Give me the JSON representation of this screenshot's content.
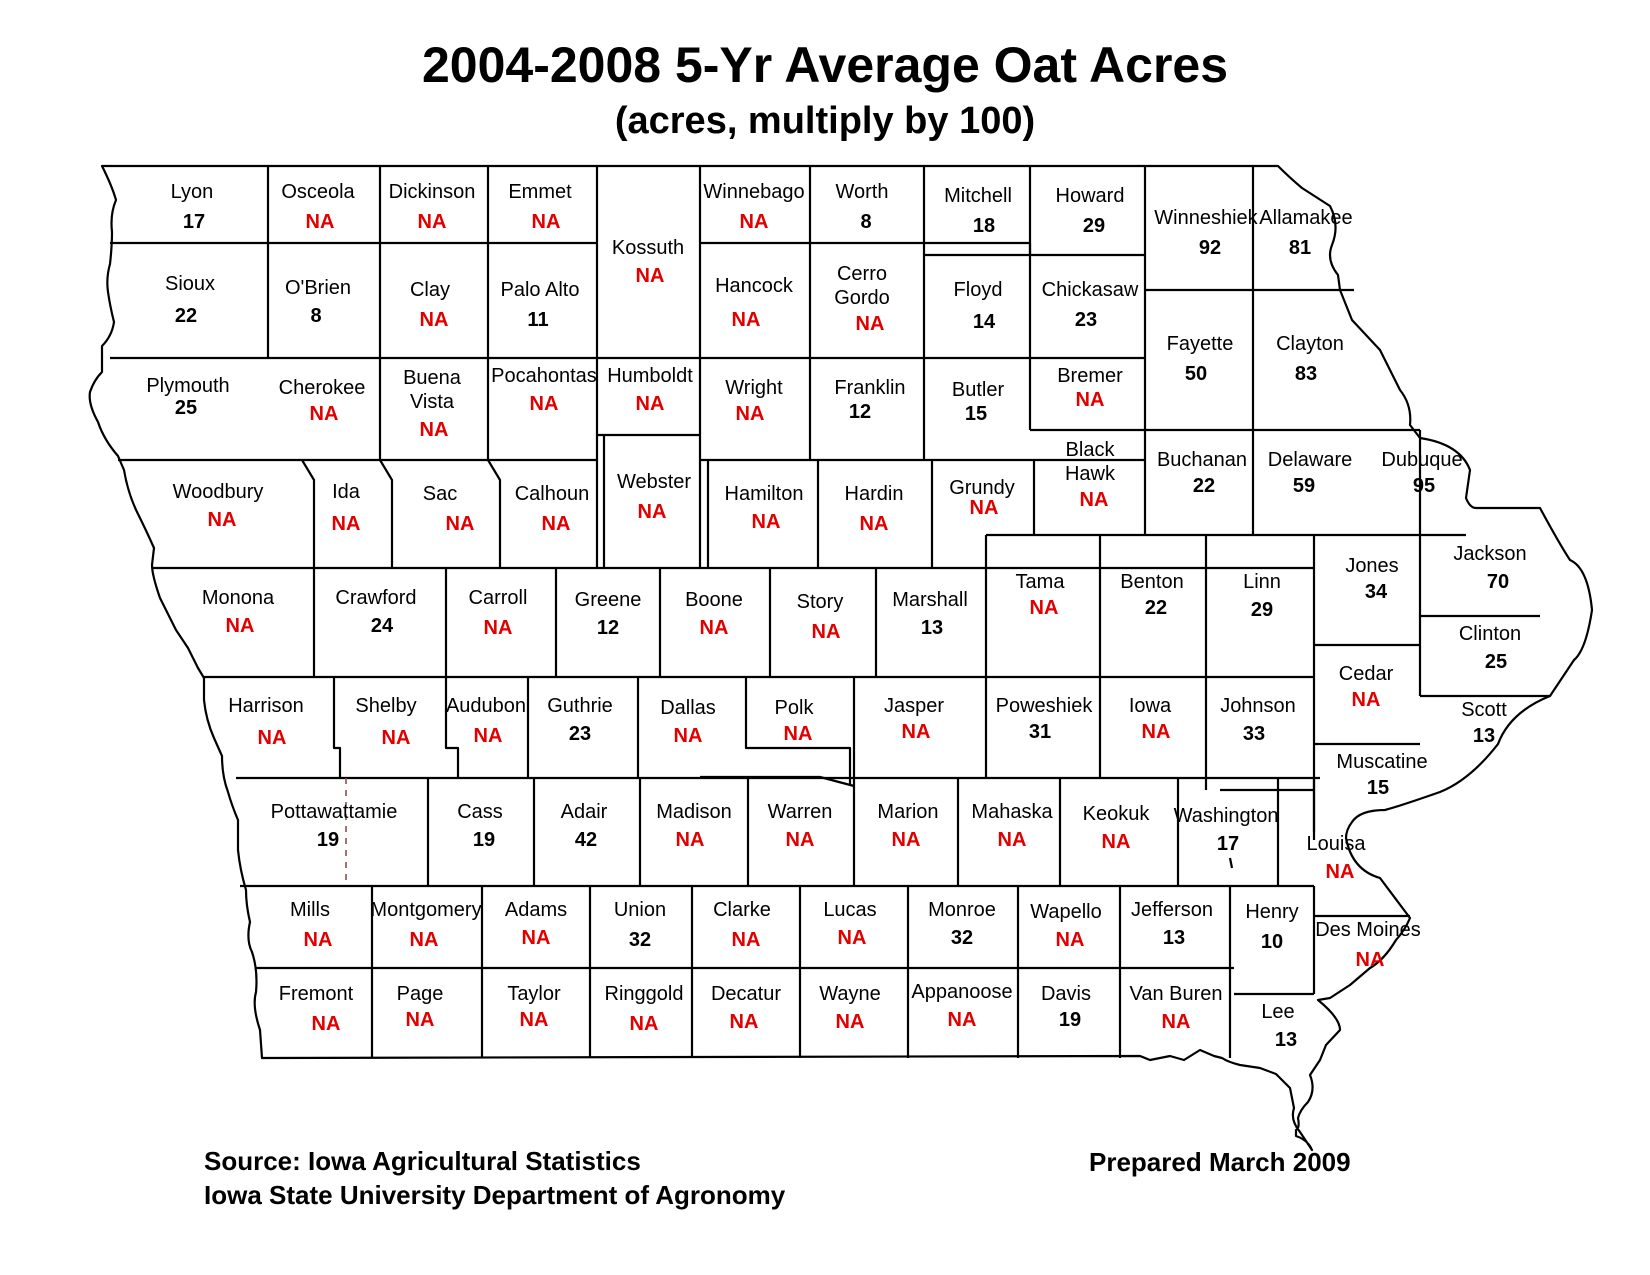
{
  "title": "2004-2008 5-Yr Average Oat Acres",
  "subtitle": "(acres, multiply by 100)",
  "source_line1": "Source:  Iowa Agricultural Statistics",
  "source_line2": "Iowa State University Department of Agronomy",
  "prepared": "Prepared March 2009",
  "colors": {
    "value": "#000000",
    "na": "#e00000",
    "border": "#000000"
  },
  "counties": [
    {
      "name": "Lyon",
      "value": "17"
    },
    {
      "name": "Osceola",
      "value": "NA"
    },
    {
      "name": "Dickinson",
      "value": "NA"
    },
    {
      "name": "Emmet",
      "value": "NA"
    },
    {
      "name": "Kossuth",
      "value": "NA"
    },
    {
      "name": "Winnebago",
      "value": "NA"
    },
    {
      "name": "Worth",
      "value": "8"
    },
    {
      "name": "Mitchell",
      "value": "18"
    },
    {
      "name": "Howard",
      "value": "29"
    },
    {
      "name": "Winneshiek",
      "value": "92"
    },
    {
      "name": "Allamakee",
      "value": "81"
    },
    {
      "name": "Sioux",
      "value": "22"
    },
    {
      "name": "O'Brien",
      "value": "8"
    },
    {
      "name": "Clay",
      "value": "NA"
    },
    {
      "name": "Palo Alto",
      "value": "11"
    },
    {
      "name": "Hancock",
      "value": "NA"
    },
    {
      "name": "Cerro Gordo",
      "value": "NA"
    },
    {
      "name": "Floyd",
      "value": "14"
    },
    {
      "name": "Chickasaw",
      "value": "23"
    },
    {
      "name": "Fayette",
      "value": "50"
    },
    {
      "name": "Clayton",
      "value": "83"
    },
    {
      "name": "Plymouth",
      "value": "25"
    },
    {
      "name": "Cherokee",
      "value": "NA"
    },
    {
      "name": "Buena Vista",
      "value": "NA"
    },
    {
      "name": "Pocahontas",
      "value": "NA"
    },
    {
      "name": "Humboldt",
      "value": "NA"
    },
    {
      "name": "Wright",
      "value": "NA"
    },
    {
      "name": "Franklin",
      "value": "12"
    },
    {
      "name": "Butler",
      "value": "15"
    },
    {
      "name": "Bremer",
      "value": "NA"
    },
    {
      "name": "Black Hawk",
      "value": "NA"
    },
    {
      "name": "Buchanan",
      "value": "22"
    },
    {
      "name": "Delaware",
      "value": "59"
    },
    {
      "name": "Dubuque",
      "value": "95"
    },
    {
      "name": "Woodbury",
      "value": "NA"
    },
    {
      "name": "Ida",
      "value": "NA"
    },
    {
      "name": "Sac",
      "value": "NA"
    },
    {
      "name": "Calhoun",
      "value": "NA"
    },
    {
      "name": "Webster",
      "value": "NA"
    },
    {
      "name": "Hamilton",
      "value": "NA"
    },
    {
      "name": "Hardin",
      "value": "NA"
    },
    {
      "name": "Grundy",
      "value": "NA"
    },
    {
      "name": "Tama",
      "value": "NA"
    },
    {
      "name": "Benton",
      "value": "22"
    },
    {
      "name": "Linn",
      "value": "29"
    },
    {
      "name": "Jones",
      "value": "34"
    },
    {
      "name": "Jackson",
      "value": "70"
    },
    {
      "name": "Monona",
      "value": "NA"
    },
    {
      "name": "Crawford",
      "value": "24"
    },
    {
      "name": "Carroll",
      "value": "NA"
    },
    {
      "name": "Greene",
      "value": "12"
    },
    {
      "name": "Boone",
      "value": "NA"
    },
    {
      "name": "Story",
      "value": "NA"
    },
    {
      "name": "Marshall",
      "value": "13"
    },
    {
      "name": "Clinton",
      "value": "25"
    },
    {
      "name": "Cedar",
      "value": "NA"
    },
    {
      "name": "Harrison",
      "value": "NA"
    },
    {
      "name": "Shelby",
      "value": "NA"
    },
    {
      "name": "Audubon",
      "value": "NA"
    },
    {
      "name": "Guthrie",
      "value": "23"
    },
    {
      "name": "Dallas",
      "value": "NA"
    },
    {
      "name": "Polk",
      "value": "NA"
    },
    {
      "name": "Jasper",
      "value": "NA"
    },
    {
      "name": "Poweshiek",
      "value": "31"
    },
    {
      "name": "Iowa",
      "value": "NA"
    },
    {
      "name": "Johnson",
      "value": "33"
    },
    {
      "name": "Scott",
      "value": "13"
    },
    {
      "name": "Muscatine",
      "value": "15"
    },
    {
      "name": "Pottawattamie",
      "value": "19"
    },
    {
      "name": "Cass",
      "value": "19"
    },
    {
      "name": "Adair",
      "value": "42"
    },
    {
      "name": "Madison",
      "value": "NA"
    },
    {
      "name": "Warren",
      "value": "NA"
    },
    {
      "name": "Marion",
      "value": "NA"
    },
    {
      "name": "Mahaska",
      "value": "NA"
    },
    {
      "name": "Keokuk",
      "value": "NA"
    },
    {
      "name": "Washington",
      "value": "17"
    },
    {
      "name": "Louisa",
      "value": "NA"
    },
    {
      "name": "Mills",
      "value": "NA"
    },
    {
      "name": "Montgomery",
      "value": "NA"
    },
    {
      "name": "Adams",
      "value": "NA"
    },
    {
      "name": "Union",
      "value": "32"
    },
    {
      "name": "Clarke",
      "value": "NA"
    },
    {
      "name": "Lucas",
      "value": "NA"
    },
    {
      "name": "Monroe",
      "value": "32"
    },
    {
      "name": "Wapello",
      "value": "NA"
    },
    {
      "name": "Jefferson",
      "value": "13"
    },
    {
      "name": "Henry",
      "value": "10"
    },
    {
      "name": "Des Moines",
      "value": "NA"
    },
    {
      "name": "Fremont",
      "value": "NA"
    },
    {
      "name": "Page",
      "value": "NA"
    },
    {
      "name": "Taylor",
      "value": "NA"
    },
    {
      "name": "Ringgold",
      "value": "NA"
    },
    {
      "name": "Decatur",
      "value": "NA"
    },
    {
      "name": "Wayne",
      "value": "NA"
    },
    {
      "name": "Appanoose",
      "value": "NA"
    },
    {
      "name": "Davis",
      "value": "19"
    },
    {
      "name": "Van Buren",
      "value": "NA"
    },
    {
      "name": "Lee",
      "value": "13"
    }
  ]
}
